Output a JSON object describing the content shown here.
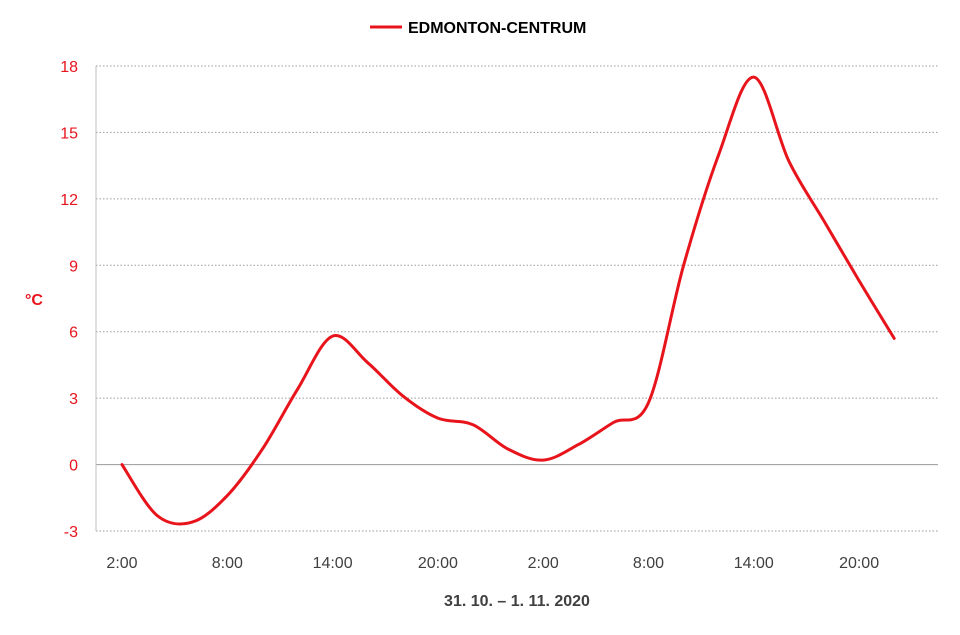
{
  "chart_data": {
    "type": "line",
    "title": "",
    "legend": {
      "position": "top-center"
    },
    "xlabel": "31. 10. – 1. 11. 2020",
    "ylabel": "°C",
    "ylim": [
      -3,
      18
    ],
    "y_ticks": [
      -3,
      0,
      3,
      6,
      9,
      12,
      15,
      18
    ],
    "x_tick_labels": [
      "2:00",
      "8:00",
      "14:00",
      "20:00",
      "2:00",
      "8:00",
      "14:00",
      "20:00"
    ],
    "grid": "horizontal dotted",
    "series_color": "#e8141c",
    "series": [
      {
        "name": "EDMONTON-CENTRUM",
        "x": [
          "2:00",
          "4:00",
          "6:00",
          "8:00",
          "10:00",
          "12:00",
          "14:00",
          "16:00",
          "18:00",
          "20:00",
          "22:00",
          "0:00",
          "2:00",
          "4:00",
          "6:00",
          "8:00",
          "10:00",
          "12:00",
          "14:00",
          "16:00",
          "18:00",
          "20:00",
          "22:00"
        ],
        "values": [
          0,
          -2.3,
          -2.6,
          -1.4,
          0.7,
          3.4,
          5.8,
          4.6,
          3.1,
          2.1,
          1.8,
          0.7,
          0.2,
          0.9,
          1.9,
          2.8,
          9,
          14,
          17.5,
          13.7,
          11,
          8.3,
          5.7
        ]
      }
    ]
  }
}
